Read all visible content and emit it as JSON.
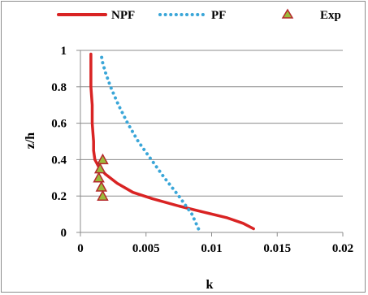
{
  "chart_data": {
    "type": "line",
    "title": "",
    "xlabel": "k",
    "ylabel": "z/h",
    "xlim": [
      0,
      0.02
    ],
    "ylim": [
      0,
      1
    ],
    "x_ticks": [
      0,
      0.005,
      0.01,
      0.015,
      0.02
    ],
    "x_tick_labels": [
      "0",
      "0.005",
      "0.01",
      "0.015",
      "0.02"
    ],
    "y_ticks": [
      0,
      0.2,
      0.4,
      0.6,
      0.8,
      1
    ],
    "y_tick_labels": [
      "0",
      "0.2",
      "0.4",
      "0.6",
      "0.8",
      "1"
    ],
    "grid": "horizontal",
    "legend_position": "top",
    "series": [
      {
        "name": "NPF",
        "style": "solid-line",
        "color": "#d92323",
        "points": [
          [
            0.0132,
            0.02
          ],
          [
            0.0124,
            0.05
          ],
          [
            0.0112,
            0.08
          ],
          [
            0.0095,
            0.11
          ],
          [
            0.0075,
            0.145
          ],
          [
            0.0055,
            0.185
          ],
          [
            0.004,
            0.22
          ],
          [
            0.0028,
            0.27
          ],
          [
            0.0019,
            0.32
          ],
          [
            0.0014,
            0.36
          ],
          [
            0.0011,
            0.4
          ],
          [
            0.001,
            0.45
          ],
          [
            0.001,
            0.5
          ],
          [
            0.0009,
            0.6
          ],
          [
            0.0009,
            0.7
          ],
          [
            0.0008,
            0.8
          ],
          [
            0.0008,
            0.9
          ],
          [
            0.0008,
            0.98
          ]
        ]
      },
      {
        "name": "PF",
        "style": "dotted-line",
        "color": "#3aa6d8",
        "points": [
          [
            0.009,
            0.02
          ],
          [
            0.0085,
            0.1
          ],
          [
            0.0075,
            0.2
          ],
          [
            0.0064,
            0.3
          ],
          [
            0.0054,
            0.4
          ],
          [
            0.0044,
            0.5
          ],
          [
            0.0036,
            0.6
          ],
          [
            0.0029,
            0.7
          ],
          [
            0.0023,
            0.8
          ],
          [
            0.0019,
            0.88
          ],
          [
            0.0017,
            0.93
          ],
          [
            0.0016,
            0.97
          ]
        ]
      },
      {
        "name": "Exp",
        "style": "triangle-markers",
        "color": "#9bbb3b",
        "edge_color": "#b5282c",
        "points": [
          [
            0.0017,
            0.4
          ],
          [
            0.0015,
            0.35
          ],
          [
            0.0014,
            0.3
          ],
          [
            0.0016,
            0.25
          ],
          [
            0.0017,
            0.2
          ]
        ]
      }
    ]
  }
}
